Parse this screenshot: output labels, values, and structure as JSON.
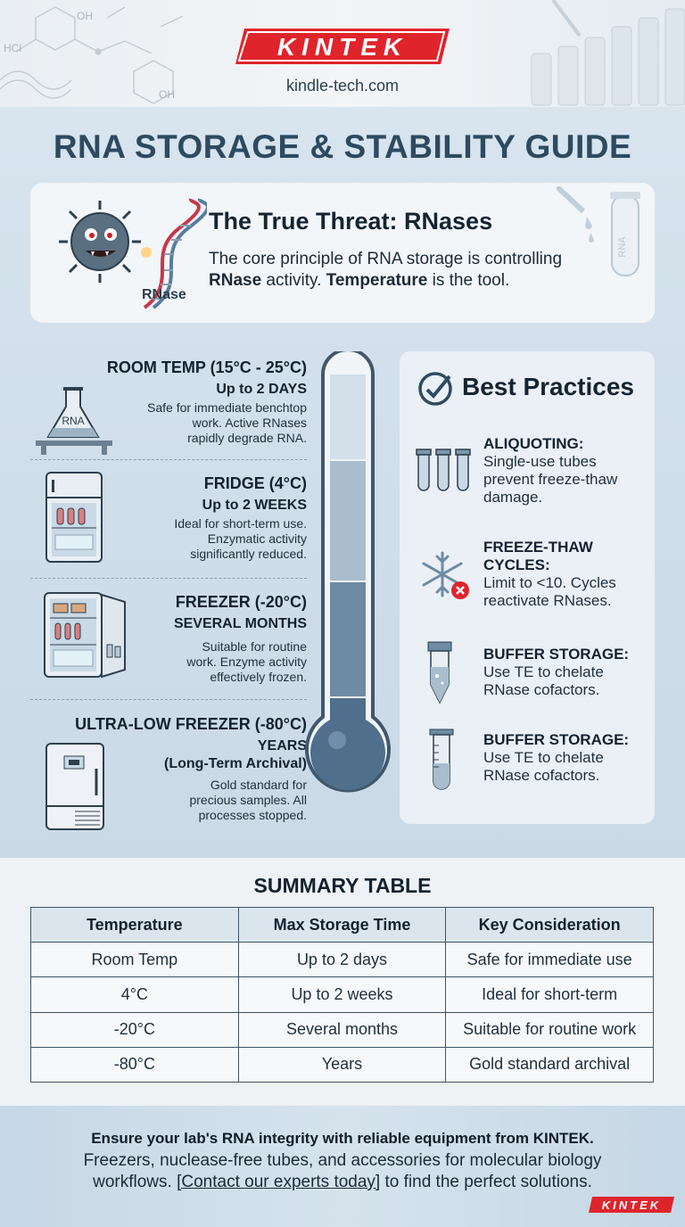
{
  "header": {
    "brand": "KINTEK",
    "website": "kindle-tech.com"
  },
  "title": "RNA STORAGE & STABILITY GUIDE",
  "threat": {
    "heading": "The True Threat: RNases",
    "text_1": "The core principle of RNA storage is controlling ",
    "text_bold_1": "RNase",
    "text_2": " activity. ",
    "text_bold_2": "Temperature",
    "text_3": " is the tool.",
    "virus_label": "RNase",
    "tube_label": "RNA"
  },
  "temperatures": [
    {
      "title": "ROOM TEMP (15°C - 25°C)",
      "duration": "Up to 2 DAYS",
      "desc_1": "Safe for immediate benchtop",
      "desc_2": "work. Active RNases",
      "desc_3": "rapidly degrade RNA.",
      "icon": "flask-icon",
      "icon_label": "RNA"
    },
    {
      "title": "FRIDGE (4°C)",
      "duration": "Up to 2 WEEKS",
      "desc_1": "Ideal for short-term use.",
      "desc_2": "Enzymatic activity",
      "desc_3": "significantly reduced.",
      "icon": "fridge-icon"
    },
    {
      "title": "FREEZER (-20°C)",
      "duration": "SEVERAL MONTHS",
      "desc_1": "Suitable for routine",
      "desc_2": "work. Enzyme activity",
      "desc_3": "effectively frozen.",
      "icon": "freezer-icon"
    },
    {
      "title": "ULTRA-LOW FREEZER (-80°C)",
      "duration": "YEARS",
      "duration_2": "(Long-Term Archival)",
      "desc_1": "Gold standard for",
      "desc_2": "precious samples. All",
      "desc_3": "processes stopped.",
      "icon": "ultra-low-freezer-icon"
    }
  ],
  "best_practices": {
    "heading": "Best Practices",
    "items": [
      {
        "h1": "ALIQUOTING:",
        "h2": "",
        "t1": "Single-use tubes",
        "t2": "prevent freeze-thaw",
        "t3": "damage.",
        "icon": "tubes-icon"
      },
      {
        "h1": "FREEZE-THAW",
        "h2": "CYCLES:",
        "t1": "Limit to <10. Cycles",
        "t2": "reactivate RNases.",
        "t3": "",
        "icon": "snowflake-icon"
      },
      {
        "h1": "BUFFER STORAGE:",
        "h2": "",
        "t1": "Use TE to chelate",
        "t2": "RNase cofactors.",
        "t3": "",
        "icon": "buffer-tube-icon"
      },
      {
        "h1": "BUFFER STORAGE:",
        "h2": "",
        "t1": "Use TE to chelate",
        "t2": "RNase cofactors.",
        "t3": "",
        "icon": "graduated-tube-icon"
      }
    ]
  },
  "summary": {
    "title": "SUMMARY TABLE",
    "headers": [
      "Temperature",
      "Max Storage Time",
      "Key Consideration"
    ],
    "rows": [
      [
        "Room Temp",
        "Up to 2 days",
        "Safe for immediate use"
      ],
      [
        "4°C",
        "Up to 2 weeks",
        "Ideal for short-term"
      ],
      [
        "-20°C",
        "Several months",
        "Suitable for routine work"
      ],
      [
        "-80°C",
        "Years",
        "Gold standard archival"
      ]
    ]
  },
  "footer": {
    "bold_line": "Ensure your lab's RNA integrity with reliable equipment from KINTEK.",
    "line_2": "Freezers, nuclease-free tubes, and accessories for molecular biology",
    "line_3a": "workflows. ",
    "link": "[Contact our experts today]",
    "line_3b": " to find the perfect solutions.",
    "brand": "KINTEK"
  },
  "colors": {
    "brand_red": "#e0242c",
    "title_blue": "#2d4a60",
    "thermo_fill": "#4f6f8c",
    "thermo_mid": "#95aec2",
    "thermo_light": "#d3dfe9"
  }
}
